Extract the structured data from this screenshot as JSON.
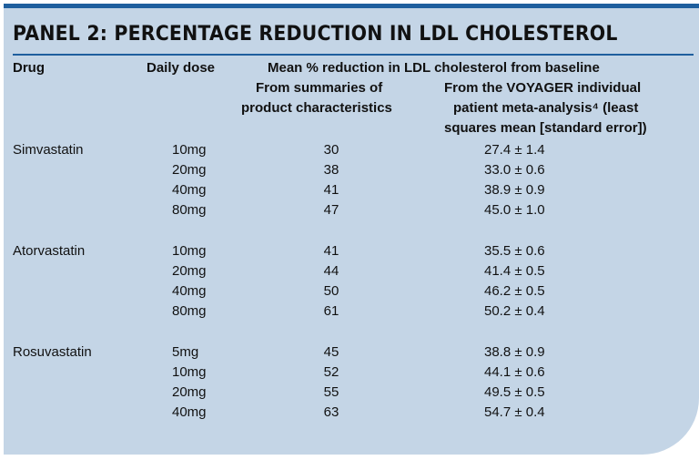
{
  "title": "PANEL 2: PERCENTAGE REDUCTION IN LDL CHOLESTEROL",
  "headers": {
    "drug": "Drug",
    "dose": "Daily dose",
    "group": "Mean % reduction in LDL cholesterol from baseline",
    "spc_line1": "From summaries of",
    "spc_line2": "product characteristics",
    "voy_line1": "From the VOYAGER individual",
    "voy_line2": "patient meta-analysis⁴ (least",
    "voy_line3": "squares mean [standard error])"
  },
  "groups": [
    {
      "drug": "Simvastatin",
      "rows": [
        {
          "dose": "10mg",
          "spc": "30",
          "voyager": "27.4 ± 1.4"
        },
        {
          "dose": "20mg",
          "spc": "38",
          "voyager": "33.0 ± 0.6"
        },
        {
          "dose": "40mg",
          "spc": "41",
          "voyager": "38.9 ± 0.9"
        },
        {
          "dose": "80mg",
          "spc": "47",
          "voyager": "45.0 ± 1.0"
        }
      ]
    },
    {
      "drug": "Atorvastatin",
      "rows": [
        {
          "dose": "10mg",
          "spc": "41",
          "voyager": "35.5 ± 0.6"
        },
        {
          "dose": "20mg",
          "spc": "44",
          "voyager": "41.4 ± 0.5"
        },
        {
          "dose": "40mg",
          "spc": "50",
          "voyager": "46.2 ± 0.5"
        },
        {
          "dose": "80mg",
          "spc": "61",
          "voyager": "50.2 ± 0.4"
        }
      ]
    },
    {
      "drug": "Rosuvastatin",
      "rows": [
        {
          "dose": "5mg",
          "spc": "45",
          "voyager": "38.8 ± 0.9"
        },
        {
          "dose": "10mg",
          "spc": "52",
          "voyager": "44.1 ± 0.6"
        },
        {
          "dose": "20mg",
          "spc": "55",
          "voyager": "49.5 ± 0.5"
        },
        {
          "dose": "40mg",
          "spc": "63",
          "voyager": "54.7 ± 0.4"
        }
      ]
    }
  ]
}
